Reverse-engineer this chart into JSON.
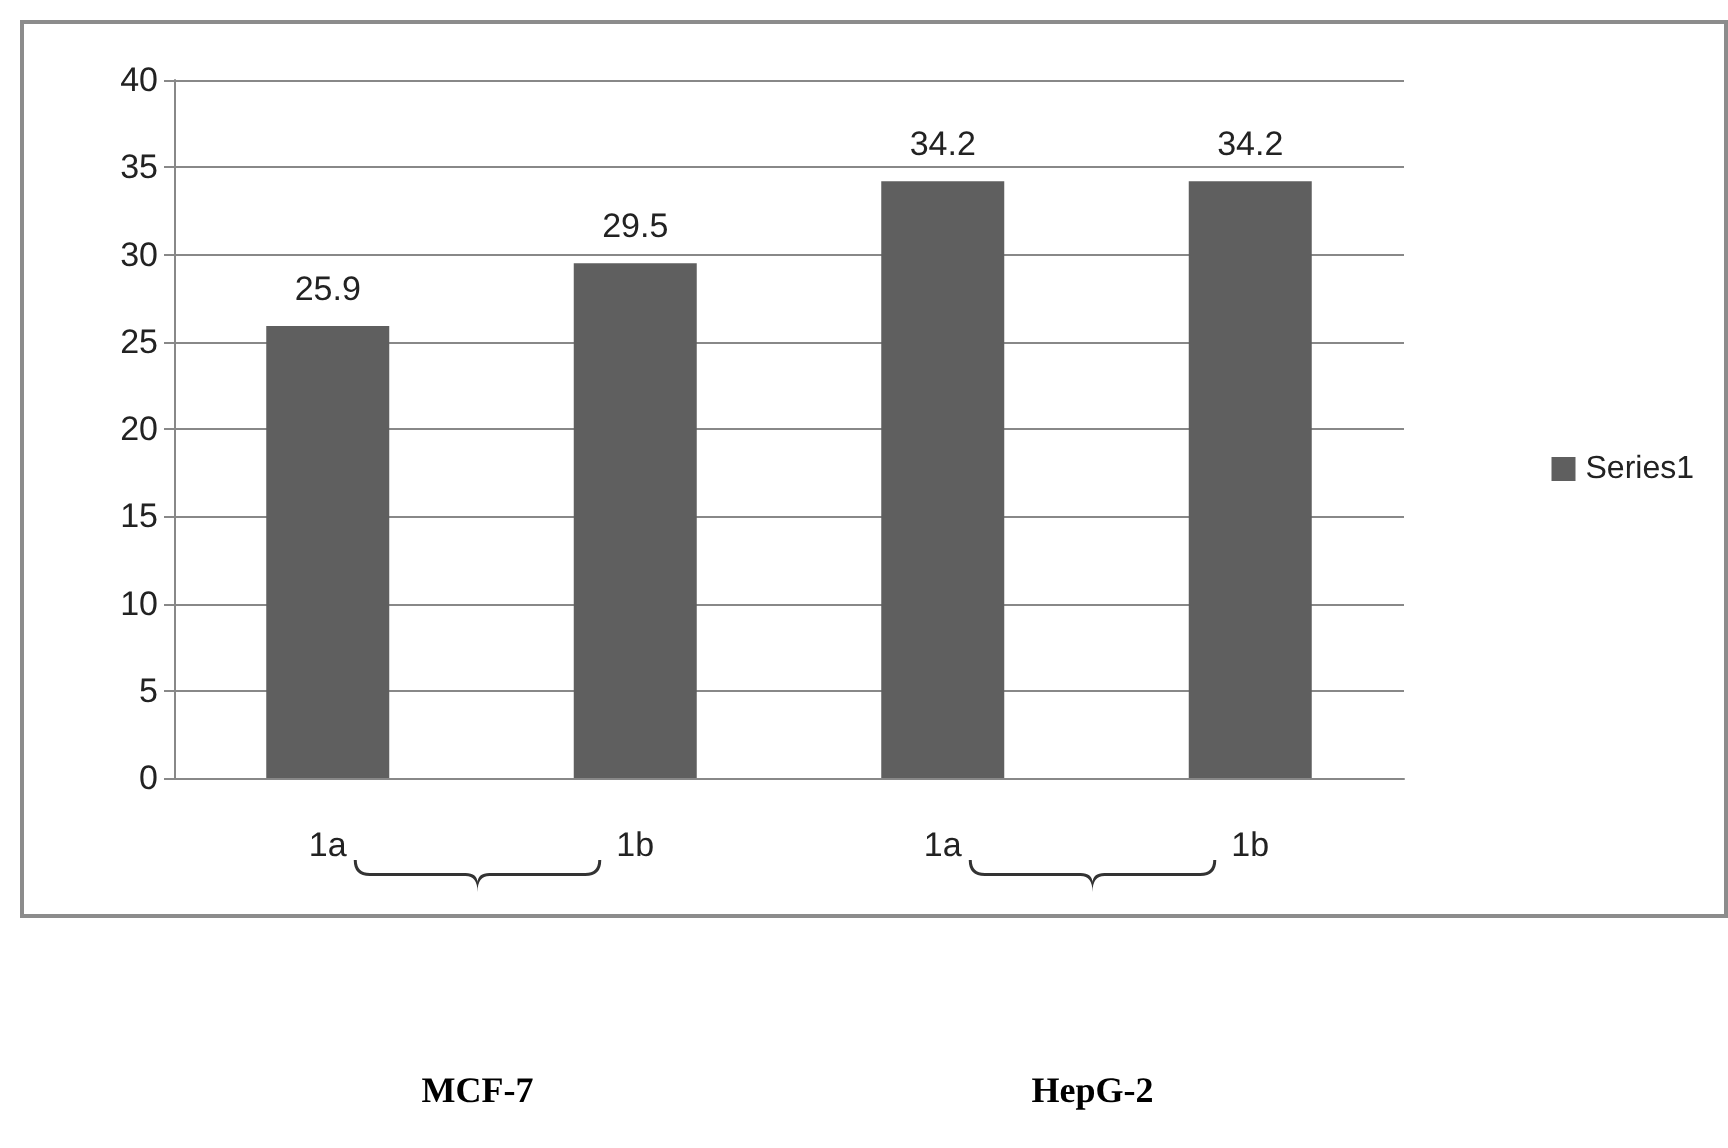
{
  "chart_data": {
    "type": "bar",
    "categories": [
      "1a",
      "1b",
      "1a",
      "1b"
    ],
    "series": [
      {
        "name": "Series1",
        "color": "#5f5f5f",
        "values": [
          25.9,
          29.5,
          34.2,
          34.2
        ]
      }
    ],
    "ylim": [
      0,
      40
    ],
    "yticks": [
      0,
      5,
      10,
      15,
      20,
      25,
      30,
      35,
      40
    ],
    "grid": "y",
    "legend": "right",
    "data_labels": true,
    "annotations": [
      "MCF-7",
      "HepG-2"
    ]
  }
}
